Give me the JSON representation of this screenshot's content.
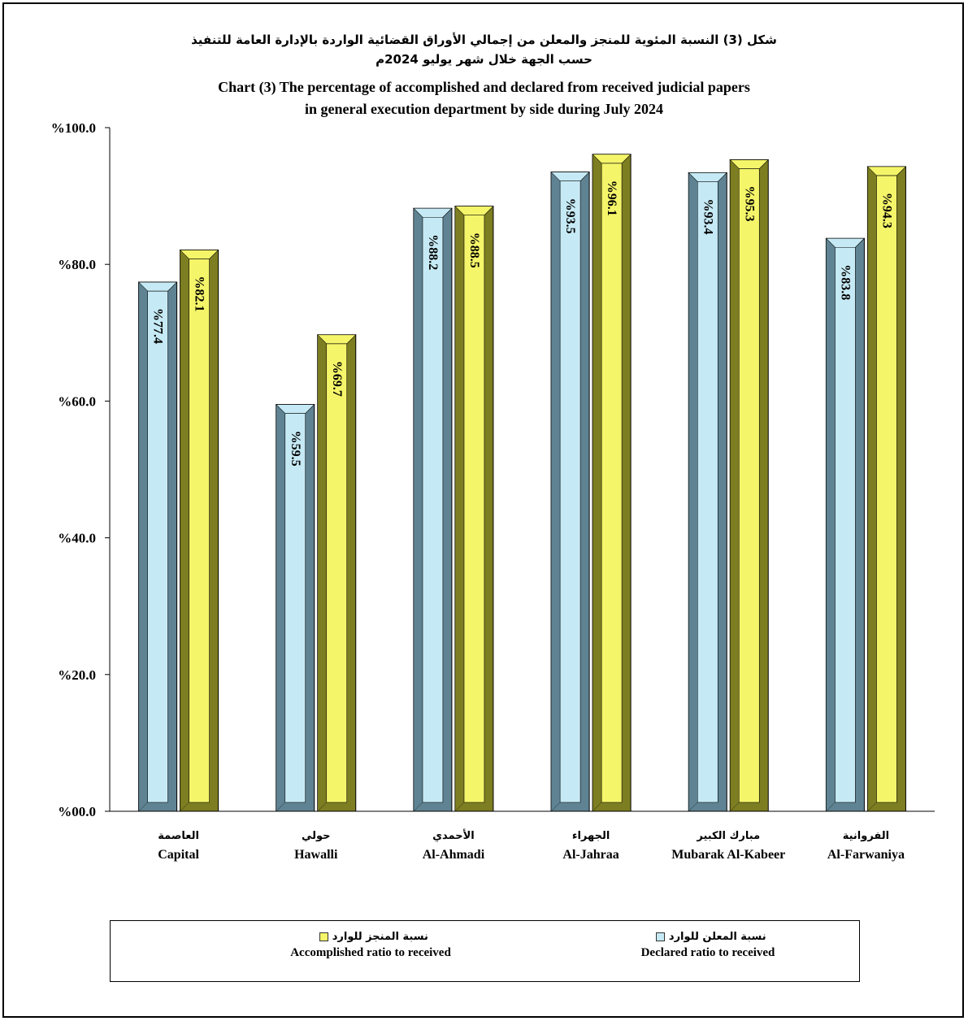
{
  "title": {
    "ar_line1": "شكل (3) النسبة المئوية للمنجز والمعلن من إجمالي الأوراق القضائية الواردة بالإدارة العامة للتنفيذ",
    "ar_line2": "حسب الجهة خلال شهر يوليو 2024م",
    "en_line1": "Chart (3) The percentage of accomplished and declared from received judicial papers",
    "en_line2": "in general execution department by side during July 2024"
  },
  "colors": {
    "declared": "#c6eaf5",
    "declared_dark": "#5f8392",
    "accomplished": "#f5f56a",
    "accomplished_dark": "#7d7d22"
  },
  "legend": {
    "declared": {
      "ar": "نسبة المعلن للوارد",
      "en": "Declared ratio to received"
    },
    "accomplished": {
      "ar": "نسبة المنجز للوارد",
      "en": "Accomplished ratio to received"
    }
  },
  "chart_data": {
    "type": "bar",
    "title": "Chart (3) The percentage of accomplished and declared from received judicial papers in general execution department by side during July 2024",
    "categories": [
      {
        "ar": "العاصمة",
        "en": "Capital"
      },
      {
        "ar": "حولي",
        "en": "Hawalli"
      },
      {
        "ar": "الأحمدي",
        "en": "Al-Ahmadi"
      },
      {
        "ar": "الجهراء",
        "en": "Al-Jahraa"
      },
      {
        "ar": "مبارك الكبير",
        "en": "Mubarak Al-Kabeer"
      },
      {
        "ar": "الفروانية",
        "en": "Al-Farwaniya"
      }
    ],
    "series": [
      {
        "name": "Declared ratio to received",
        "values": [
          77.4,
          59.5,
          88.2,
          93.5,
          93.4,
          83.8
        ]
      },
      {
        "name": "Accomplished ratio to received",
        "values": [
          82.1,
          69.7,
          88.5,
          96.1,
          95.3,
          94.3
        ]
      }
    ],
    "value_labels": {
      "declared": [
        "%77.4",
        "%59.5",
        "%88.2",
        "%93.5",
        "%93.4",
        "%83.8"
      ],
      "accomplished": [
        "%82.1",
        "%69.7",
        "%88.5",
        "%96.1",
        "%95.3",
        "%94.3"
      ]
    },
    "yticks": [
      0,
      20,
      40,
      60,
      80,
      100
    ],
    "ytick_labels": [
      "%00.0",
      "%20.0",
      "%40.0",
      "%60.0",
      "%80.0",
      "%100.0"
    ],
    "ylim": [
      0,
      100
    ],
    "grid": false,
    "legend_position": "bottom"
  }
}
